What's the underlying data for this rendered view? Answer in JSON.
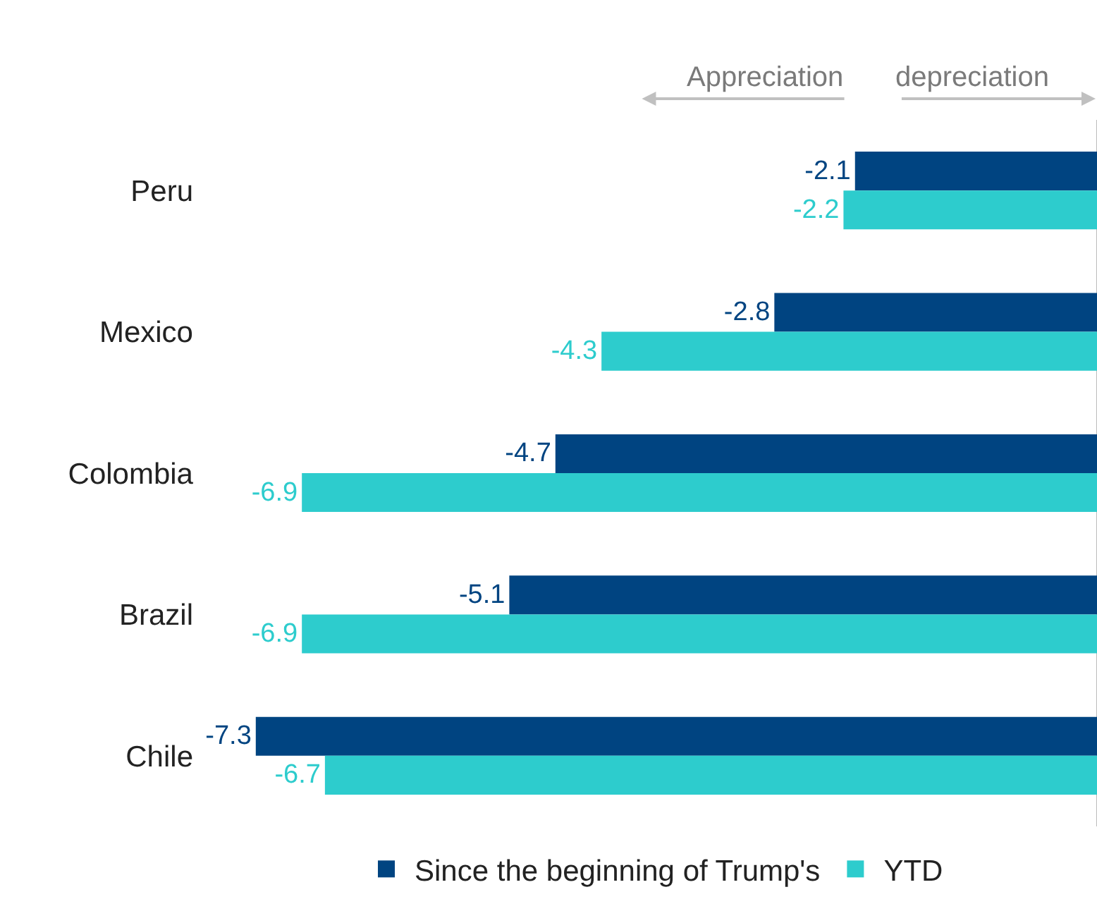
{
  "chart_data": {
    "type": "bar",
    "orientation": "horizontal",
    "categories": [
      "Peru",
      "Mexico",
      "Colombia",
      "Brazil",
      "Chile"
    ],
    "series": [
      {
        "name": "Since the beginning of Trump's",
        "color": "#004481",
        "values": [
          -2.1,
          -2.8,
          -4.7,
          -5.1,
          -7.3
        ]
      },
      {
        "name": "YTD",
        "color": "#2dcccd",
        "values": [
          -2.2,
          -4.3,
          -6.9,
          -6.9,
          -6.7
        ]
      }
    ],
    "data_labels": true,
    "tick_labels": "y",
    "grid": false,
    "legend": "bottom",
    "annotations": [
      "Appreciation",
      "depreciation"
    ]
  }
}
